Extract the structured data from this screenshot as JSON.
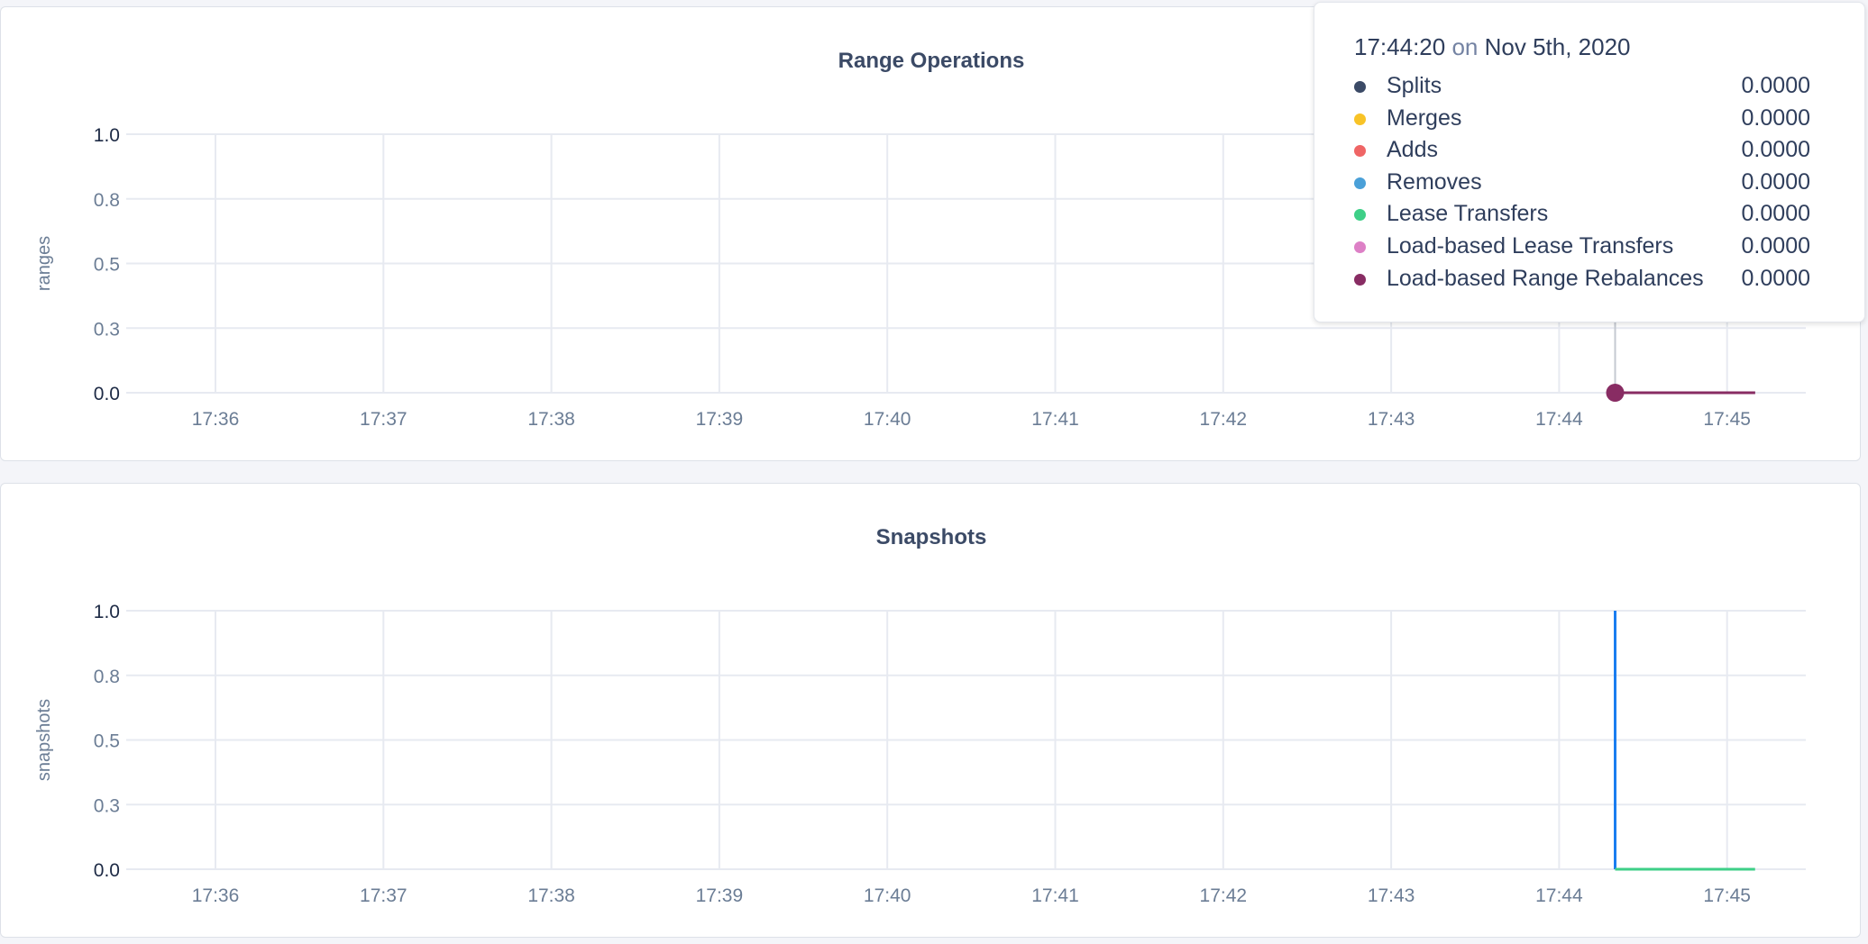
{
  "chart_data": [
    {
      "type": "line",
      "title": "Range Operations",
      "ylabel": "ranges",
      "ylim": [
        0,
        1
      ],
      "y_gridlines": [
        0,
        0.25,
        0.5,
        0.75,
        1.0
      ],
      "y_tick_labels": [
        "0.0",
        "0.3",
        "0.5",
        "0.8",
        "1.0"
      ],
      "x_tick_labels": [
        "17:36",
        "17:37",
        "17:38",
        "17:39",
        "17:40",
        "17:41",
        "17:42",
        "17:43",
        "17:44",
        "17:45"
      ],
      "grid": true,
      "series": [
        {
          "name": "Splits",
          "color": "#3b4a66",
          "x": [
            "17:44:20",
            "17:45:10"
          ],
          "values": [
            0,
            0
          ]
        },
        {
          "name": "Merges",
          "color": "#f8c327",
          "x": [
            "17:44:20",
            "17:45:10"
          ],
          "values": [
            0,
            0
          ]
        },
        {
          "name": "Adds",
          "color": "#ef6565",
          "x": [
            "17:44:20",
            "17:45:10"
          ],
          "values": [
            0,
            0
          ]
        },
        {
          "name": "Removes",
          "color": "#4aa0d8",
          "x": [
            "17:44:20",
            "17:45:10"
          ],
          "values": [
            0,
            0
          ]
        },
        {
          "name": "Lease Transfers",
          "color": "#3ecf87",
          "x": [
            "17:44:20",
            "17:45:10"
          ],
          "values": [
            0,
            0
          ]
        },
        {
          "name": "Load-based Lease Transfers",
          "color": "#dd80c6",
          "x": [
            "17:44:20",
            "17:45:10"
          ],
          "values": [
            0,
            0
          ]
        },
        {
          "name": "Load-based Range Rebalances",
          "color": "#882c63",
          "x": [
            "17:44:20",
            "17:45:10"
          ],
          "values": [
            0,
            0
          ]
        }
      ],
      "tooltip": {
        "time": "17:44:20",
        "on": "on",
        "date": "Nov 5th, 2020",
        "rows": [
          {
            "label": "Splits",
            "value": "0.0000",
            "color": "#3b4a66"
          },
          {
            "label": "Merges",
            "value": "0.0000",
            "color": "#f8c327"
          },
          {
            "label": "Adds",
            "value": "0.0000",
            "color": "#ef6565"
          },
          {
            "label": "Removes",
            "value": "0.0000",
            "color": "#4aa0d8"
          },
          {
            "label": "Lease Transfers",
            "value": "0.0000",
            "color": "#3ecf87"
          },
          {
            "label": "Load-based Lease Transfers",
            "value": "0.0000",
            "color": "#dd80c6"
          },
          {
            "label": "Load-based Range Rebalances",
            "value": "0.0000",
            "color": "#882c63"
          }
        ]
      }
    },
    {
      "type": "line",
      "title": "Snapshots",
      "ylabel": "snapshots",
      "ylim": [
        0,
        1
      ],
      "y_gridlines": [
        0,
        0.25,
        0.5,
        0.75,
        1.0
      ],
      "y_tick_labels": [
        "0.0",
        "0.3",
        "0.5",
        "0.8",
        "1.0"
      ],
      "x_tick_labels": [
        "17:36",
        "17:37",
        "17:38",
        "17:39",
        "17:40",
        "17:41",
        "17:42",
        "17:43",
        "17:44",
        "17:45"
      ],
      "grid": true,
      "series": [
        {
          "color": "#1a7df0",
          "x": [
            "17:44:20",
            "17:44:20"
          ],
          "values": [
            1,
            0
          ]
        },
        {
          "color": "#3ecf87",
          "x": [
            "17:44:20",
            "17:45:10"
          ],
          "values": [
            0,
            0
          ]
        }
      ]
    }
  ]
}
